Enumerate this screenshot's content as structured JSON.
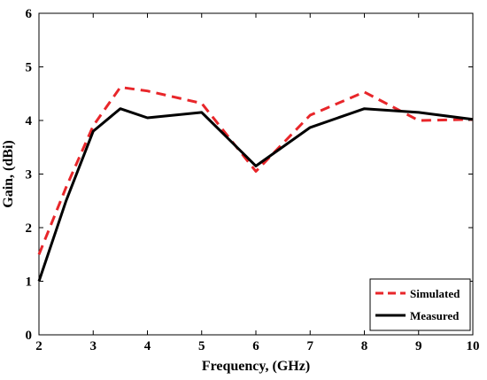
{
  "chart_data": {
    "type": "line",
    "xlabel": "Frequency, (GHz)",
    "ylabel": "Gain, (dBi)",
    "xlim": [
      2,
      10
    ],
    "ylim": [
      0,
      6
    ],
    "xticks": [
      2,
      3,
      4,
      5,
      6,
      7,
      8,
      9,
      10
    ],
    "yticks": [
      0,
      1,
      2,
      3,
      4,
      5,
      6
    ],
    "grid": false,
    "legend_position": "bottom-right",
    "series": [
      {
        "name": "Simulated",
        "color": "#e8262a",
        "style": "dashed",
        "x": [
          2,
          2.5,
          3,
          3.5,
          4,
          5,
          6,
          7,
          8,
          9,
          10
        ],
        "y": [
          1.5,
          2.75,
          3.9,
          4.62,
          4.55,
          4.32,
          3.05,
          4.1,
          4.53,
          4.0,
          4.02
        ]
      },
      {
        "name": "Measured",
        "color": "#000000",
        "style": "solid",
        "x": [
          2,
          2.5,
          3,
          3.5,
          4,
          5,
          6,
          7,
          8,
          9,
          10
        ],
        "y": [
          1.0,
          2.5,
          3.8,
          4.22,
          4.05,
          4.15,
          3.15,
          3.87,
          4.22,
          4.15,
          4.02
        ]
      }
    ]
  }
}
